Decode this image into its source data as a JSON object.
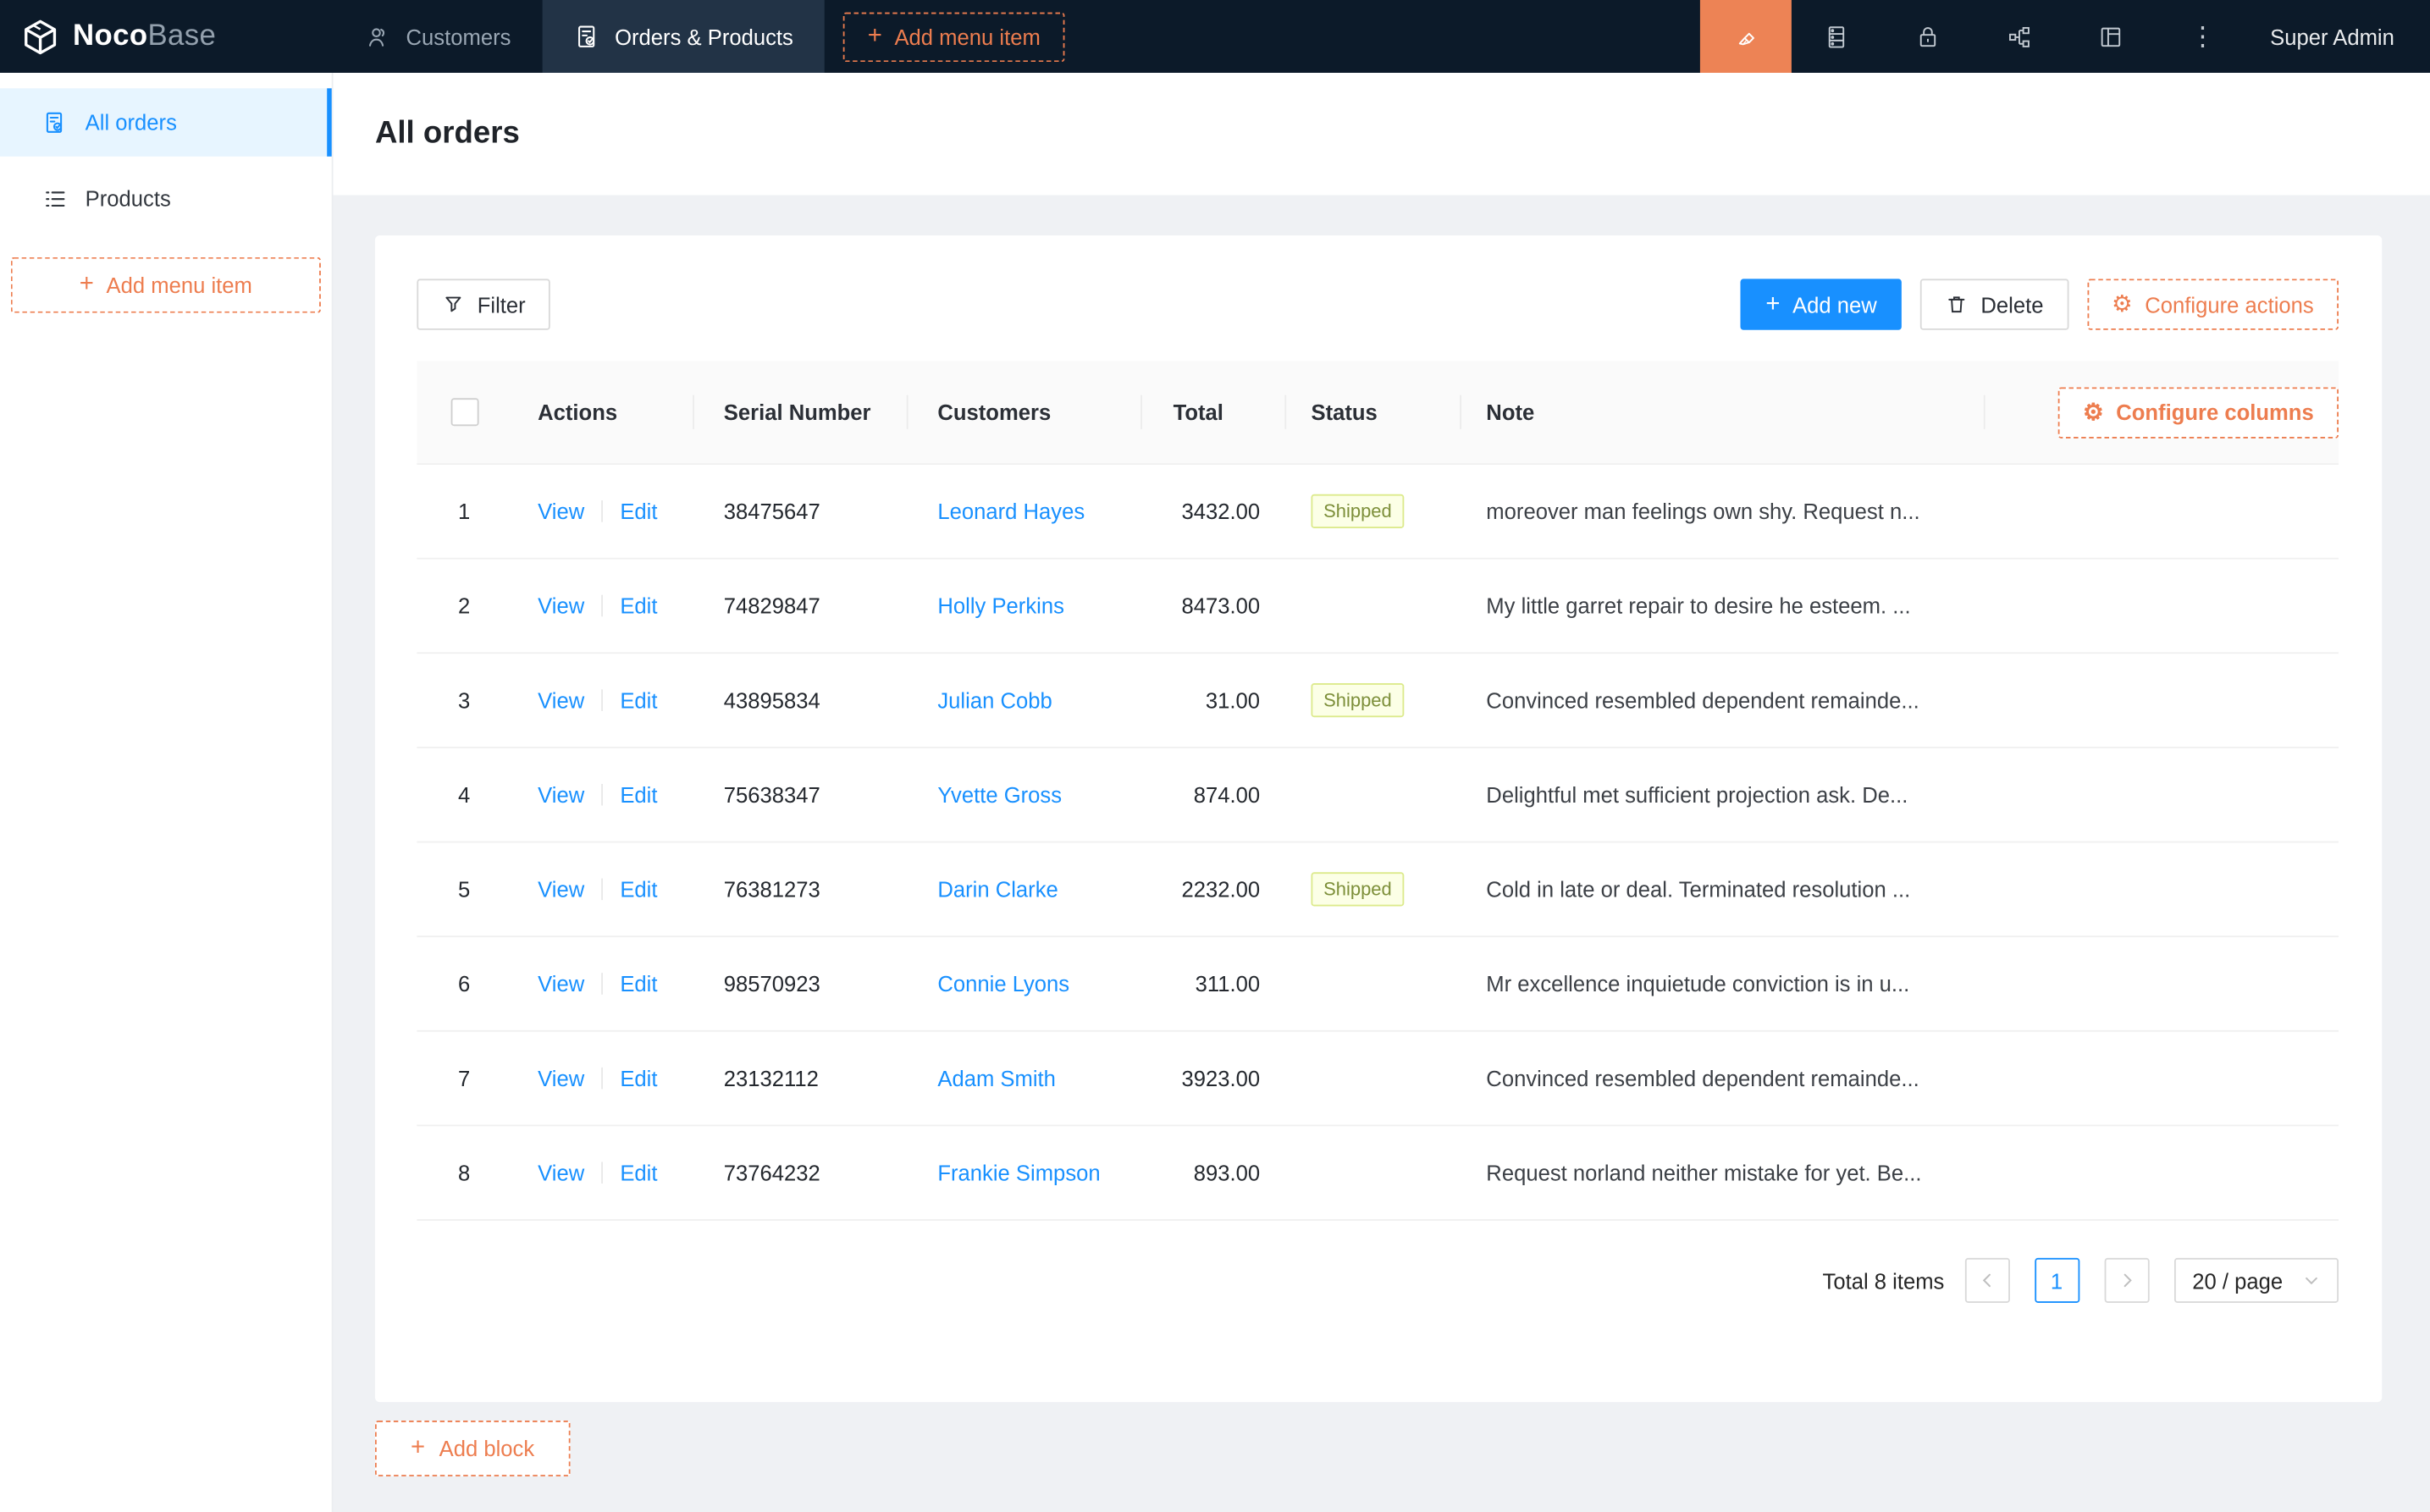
{
  "topnav": {
    "logo": {
      "noco": "Noco",
      "base": "Base"
    },
    "tabs": [
      {
        "label": "Customers"
      },
      {
        "label": "Orders & Products"
      }
    ],
    "add_menu_item_label": "Add menu item",
    "user": "Super Admin",
    "icons": [
      "ui-editor-pen",
      "database",
      "lock",
      "workflow",
      "layout",
      "more"
    ]
  },
  "sidebar": {
    "items": [
      {
        "label": "All orders"
      },
      {
        "label": "Products"
      }
    ],
    "add_menu_item_label": "Add menu item"
  },
  "page": {
    "title": "All orders"
  },
  "toolbar": {
    "filter_label": "Filter",
    "add_new_label": "Add new",
    "delete_label": "Delete",
    "configure_actions_label": "Configure actions"
  },
  "table": {
    "configure_columns_label": "Configure columns",
    "headers": [
      "Actions",
      "Serial Number",
      "Customers",
      "Total",
      "Status",
      "Note"
    ],
    "action_labels": {
      "view": "View",
      "edit": "Edit"
    },
    "rows": [
      {
        "index": "1",
        "serial": "38475647",
        "customer": "Leonard Hayes",
        "total": "3432.00",
        "status": "Shipped",
        "note": "moreover man feelings own shy. Request n..."
      },
      {
        "index": "2",
        "serial": "74829847",
        "customer": "Holly Perkins",
        "total": "8473.00",
        "status": "",
        "note": "My little garret repair to desire he esteem. ..."
      },
      {
        "index": "3",
        "serial": "43895834",
        "customer": "Julian Cobb",
        "total": "31.00",
        "status": "Shipped",
        "note": "Convinced resembled dependent remainde..."
      },
      {
        "index": "4",
        "serial": "75638347",
        "customer": "Yvette Gross",
        "total": "874.00",
        "status": "",
        "note": "Delightful met sufficient projection ask. De..."
      },
      {
        "index": "5",
        "serial": "76381273",
        "customer": "Darin Clarke",
        "total": "2232.00",
        "status": "Shipped",
        "note": "Cold in late or deal. Terminated resolution ..."
      },
      {
        "index": "6",
        "serial": "98570923",
        "customer": "Connie Lyons",
        "total": "311.00",
        "status": "",
        "note": "Mr excellence inquietude conviction is in u..."
      },
      {
        "index": "7",
        "serial": "23132112",
        "customer": "Adam Smith",
        "total": "3923.00",
        "status": "",
        "note": "Convinced resembled dependent remainde..."
      },
      {
        "index": "8",
        "serial": "73764232",
        "customer": "Frankie Simpson",
        "total": "893.00",
        "status": "",
        "note": "Request norland neither mistake for yet. Be..."
      }
    ],
    "pagination": {
      "total_label": "Total 8 items",
      "current_page": "1",
      "page_size_label": "20 / page"
    }
  },
  "footer": {
    "add_block_label": "Add block"
  },
  "colors": {
    "accent_blue": "#1890ff",
    "designer_orange": "#ed7d4f",
    "nav_background": "#0c1a29",
    "active_tab_background": "#223346",
    "orange_square": "#ed8355",
    "sidebar_active_bg": "#e7f5ff",
    "badge_bg": "#fcffe6",
    "badge_border": "#dcea8c",
    "badge_text": "#7d8f3a",
    "content_bg": "#eff1f4"
  }
}
